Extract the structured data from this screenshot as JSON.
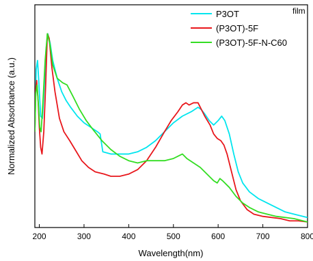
{
  "chart_data": {
    "type": "line",
    "title": "",
    "corner_label": "film",
    "xlabel": "Wavelength(nm)",
    "ylabel": "Normalized Absorbance (a.u.)",
    "xlim": [
      190,
      800
    ],
    "ylim": [
      0,
      1
    ],
    "xticks": [
      200,
      300,
      400,
      500,
      600,
      700,
      800
    ],
    "y_tick_labels": false,
    "grid": false,
    "legend": {
      "position": "top-right"
    },
    "series": [
      {
        "name": "P3OT",
        "color": "#00e5ee",
        "points": [
          [
            190,
            0.43
          ],
          [
            193,
            0.71
          ],
          [
            196,
            0.75
          ],
          [
            199,
            0.65
          ],
          [
            203,
            0.5
          ],
          [
            207,
            0.49
          ],
          [
            211,
            0.63
          ],
          [
            215,
            0.8
          ],
          [
            219,
            0.87
          ],
          [
            224,
            0.83
          ],
          [
            230,
            0.75
          ],
          [
            240,
            0.67
          ],
          [
            250,
            0.61
          ],
          [
            260,
            0.57
          ],
          [
            270,
            0.54
          ],
          [
            285,
            0.5
          ],
          [
            300,
            0.47
          ],
          [
            315,
            0.45
          ],
          [
            330,
            0.43
          ],
          [
            336,
            0.42
          ],
          [
            339,
            0.38
          ],
          [
            342,
            0.34
          ],
          [
            360,
            0.33
          ],
          [
            380,
            0.33
          ],
          [
            400,
            0.33
          ],
          [
            420,
            0.34
          ],
          [
            440,
            0.36
          ],
          [
            460,
            0.39
          ],
          [
            480,
            0.43
          ],
          [
            500,
            0.47
          ],
          [
            520,
            0.5
          ],
          [
            540,
            0.52
          ],
          [
            555,
            0.54
          ],
          [
            562,
            0.53
          ],
          [
            570,
            0.51
          ],
          [
            580,
            0.48
          ],
          [
            590,
            0.46
          ],
          [
            600,
            0.48
          ],
          [
            608,
            0.5
          ],
          [
            615,
            0.48
          ],
          [
            625,
            0.42
          ],
          [
            635,
            0.33
          ],
          [
            645,
            0.25
          ],
          [
            655,
            0.2
          ],
          [
            670,
            0.16
          ],
          [
            690,
            0.13
          ],
          [
            710,
            0.11
          ],
          [
            730,
            0.09
          ],
          [
            750,
            0.07
          ],
          [
            770,
            0.06
          ],
          [
            790,
            0.05
          ],
          [
            800,
            0.045
          ]
        ]
      },
      {
        "name": "(P3OT)-5F",
        "color": "#e8161b",
        "points": [
          [
            190,
            0.43
          ],
          [
            192,
            0.62
          ],
          [
            194,
            0.66
          ],
          [
            197,
            0.58
          ],
          [
            200,
            0.45
          ],
          [
            203,
            0.36
          ],
          [
            206,
            0.33
          ],
          [
            210,
            0.43
          ],
          [
            214,
            0.63
          ],
          [
            218,
            0.87
          ],
          [
            222,
            0.85
          ],
          [
            228,
            0.72
          ],
          [
            235,
            0.61
          ],
          [
            245,
            0.49
          ],
          [
            255,
            0.43
          ],
          [
            268,
            0.39
          ],
          [
            280,
            0.35
          ],
          [
            295,
            0.3
          ],
          [
            310,
            0.27
          ],
          [
            325,
            0.25
          ],
          [
            345,
            0.24
          ],
          [
            360,
            0.23
          ],
          [
            380,
            0.23
          ],
          [
            400,
            0.24
          ],
          [
            420,
            0.26
          ],
          [
            440,
            0.3
          ],
          [
            460,
            0.36
          ],
          [
            480,
            0.43
          ],
          [
            495,
            0.48
          ],
          [
            510,
            0.52
          ],
          [
            520,
            0.55
          ],
          [
            528,
            0.56
          ],
          [
            535,
            0.55
          ],
          [
            545,
            0.56
          ],
          [
            555,
            0.56
          ],
          [
            560,
            0.54
          ],
          [
            570,
            0.5
          ],
          [
            582,
            0.46
          ],
          [
            590,
            0.42
          ],
          [
            598,
            0.4
          ],
          [
            606,
            0.39
          ],
          [
            613,
            0.37
          ],
          [
            620,
            0.33
          ],
          [
            630,
            0.25
          ],
          [
            640,
            0.17
          ],
          [
            650,
            0.12
          ],
          [
            665,
            0.08
          ],
          [
            680,
            0.06
          ],
          [
            700,
            0.05
          ],
          [
            720,
            0.045
          ],
          [
            740,
            0.04
          ],
          [
            760,
            0.03
          ],
          [
            780,
            0.03
          ],
          [
            800,
            0.025
          ]
        ]
      },
      {
        "name": "(P3OT)-5F-N-C60",
        "color": "#33dd22",
        "points": [
          [
            190,
            0.43
          ],
          [
            192,
            0.6
          ],
          [
            195,
            0.64
          ],
          [
            198,
            0.55
          ],
          [
            201,
            0.45
          ],
          [
            204,
            0.43
          ],
          [
            208,
            0.56
          ],
          [
            213,
            0.75
          ],
          [
            218,
            0.87
          ],
          [
            224,
            0.82
          ],
          [
            230,
            0.73
          ],
          [
            240,
            0.67
          ],
          [
            252,
            0.65
          ],
          [
            262,
            0.64
          ],
          [
            275,
            0.59
          ],
          [
            290,
            0.53
          ],
          [
            305,
            0.48
          ],
          [
            320,
            0.44
          ],
          [
            340,
            0.39
          ],
          [
            360,
            0.35
          ],
          [
            380,
            0.32
          ],
          [
            400,
            0.3
          ],
          [
            420,
            0.29
          ],
          [
            440,
            0.3
          ],
          [
            460,
            0.3
          ],
          [
            480,
            0.3
          ],
          [
            500,
            0.31
          ],
          [
            510,
            0.32
          ],
          [
            520,
            0.33
          ],
          [
            530,
            0.31
          ],
          [
            545,
            0.29
          ],
          [
            560,
            0.27
          ],
          [
            575,
            0.24
          ],
          [
            590,
            0.21
          ],
          [
            598,
            0.2
          ],
          [
            604,
            0.22
          ],
          [
            610,
            0.21
          ],
          [
            625,
            0.18
          ],
          [
            640,
            0.14
          ],
          [
            655,
            0.11
          ],
          [
            670,
            0.09
          ],
          [
            690,
            0.07
          ],
          [
            710,
            0.06
          ],
          [
            730,
            0.05
          ],
          [
            750,
            0.045
          ],
          [
            770,
            0.04
          ],
          [
            790,
            0.03
          ],
          [
            800,
            0.025
          ]
        ]
      }
    ]
  }
}
